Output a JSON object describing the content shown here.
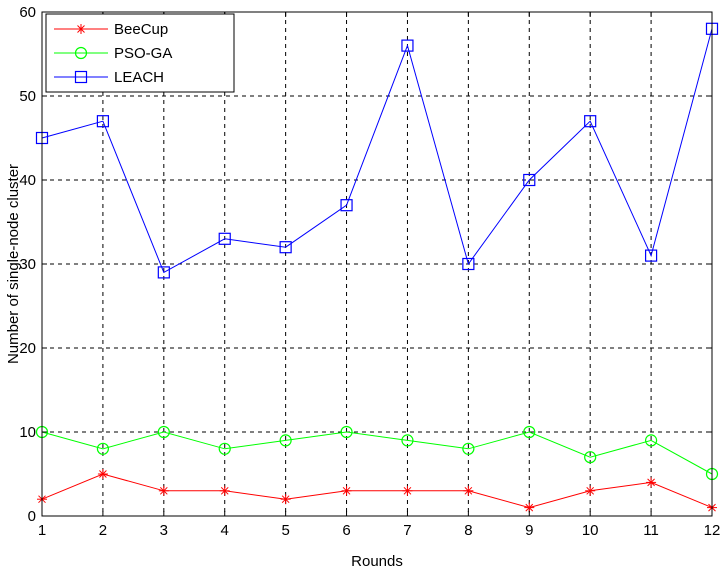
{
  "chart_data": {
    "type": "line",
    "title": "",
    "xlabel": "Rounds",
    "ylabel": "Number of single-node cluster",
    "x": [
      1,
      2,
      3,
      4,
      5,
      6,
      7,
      8,
      9,
      10,
      11,
      12
    ],
    "xlim": [
      1,
      12
    ],
    "ylim": [
      0,
      60
    ],
    "xticks": [
      1,
      2,
      3,
      4,
      5,
      6,
      7,
      8,
      9,
      10,
      11,
      12
    ],
    "yticks": [
      0,
      10,
      20,
      30,
      40,
      50,
      60
    ],
    "grid": true,
    "legend_position": "top-left",
    "series": [
      {
        "name": "BeeCup",
        "color": "#ff0000",
        "marker": "asterisk",
        "values": [
          2,
          5,
          3,
          3,
          2,
          3,
          3,
          3,
          1,
          3,
          4,
          1
        ]
      },
      {
        "name": "PSO-GA",
        "color": "#00ff00",
        "marker": "circle",
        "values": [
          10,
          8,
          10,
          8,
          9,
          10,
          9,
          8,
          10,
          7,
          9,
          5
        ]
      },
      {
        "name": "LEACH",
        "color": "#0000ff",
        "marker": "square",
        "values": [
          45,
          47,
          29,
          33,
          32,
          37,
          56,
          30,
          40,
          47,
          31,
          58
        ]
      }
    ]
  }
}
